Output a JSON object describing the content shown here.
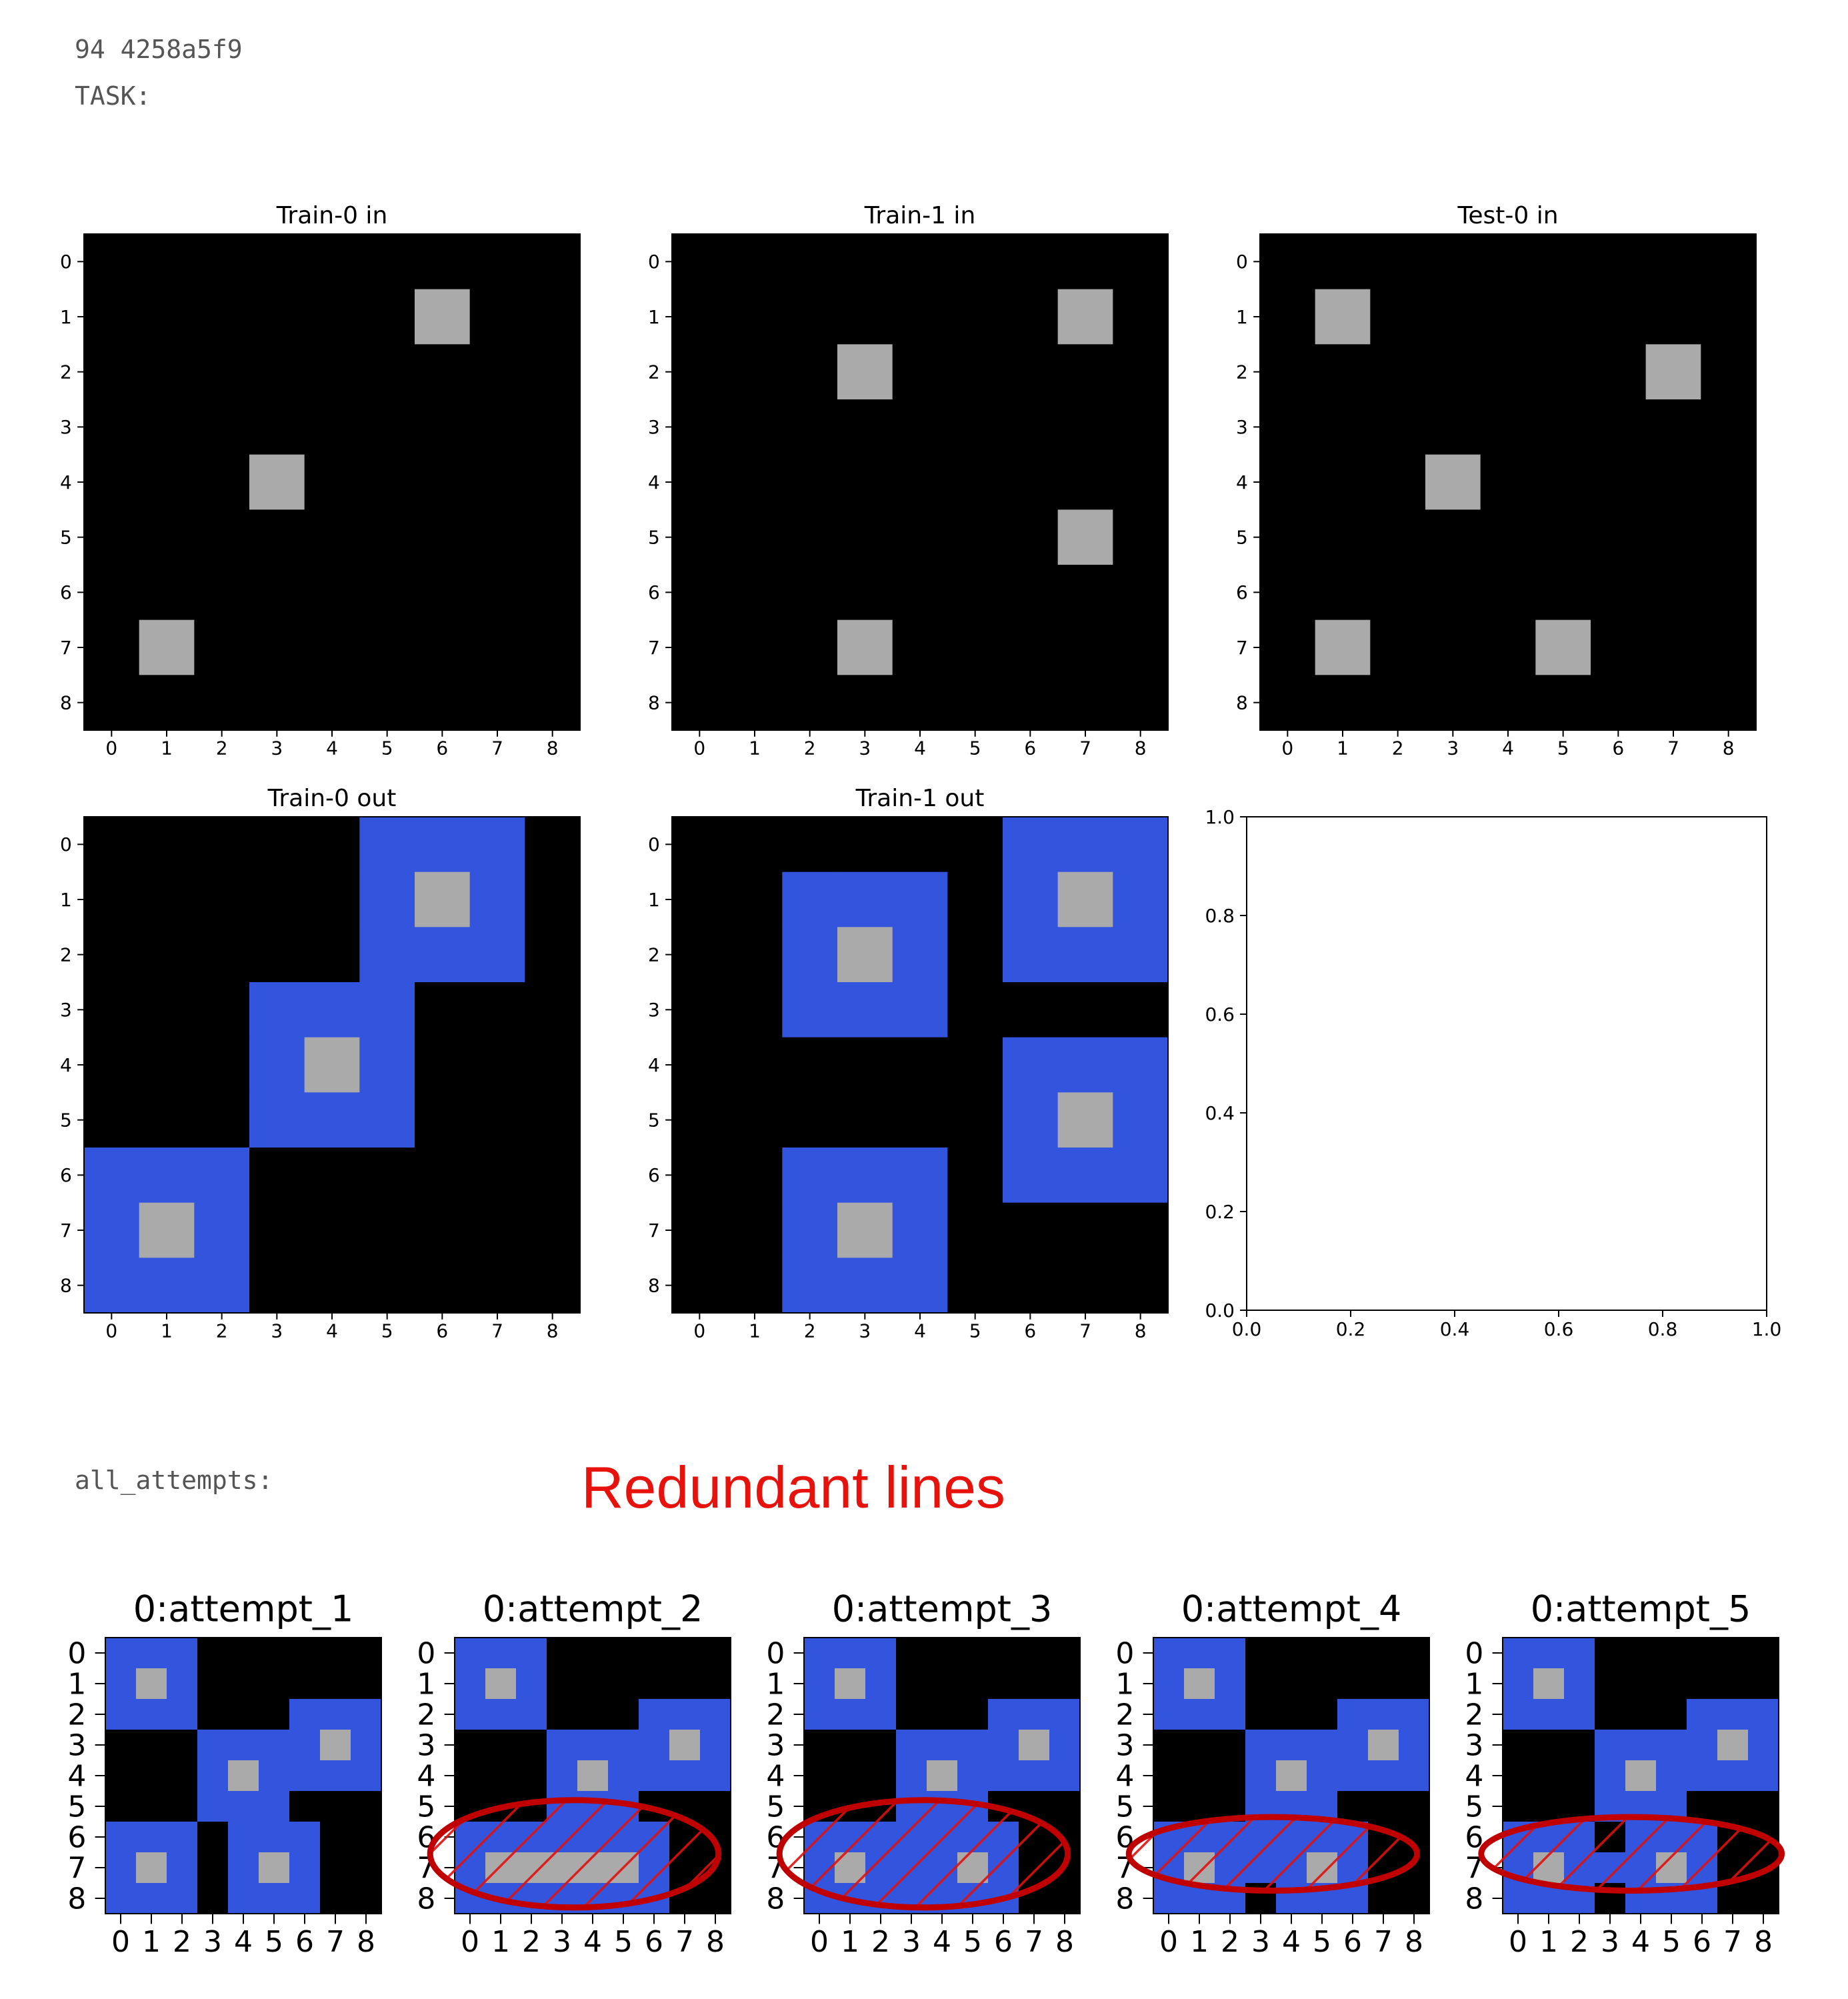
{
  "header": {
    "line1": "94 4258a5f9",
    "line2": "TASK:"
  },
  "attempts_label": "all_attempts:",
  "annotation": "Redundant lines",
  "palette": {
    "0": "#000000",
    "1": "#3355dd",
    "5": "#aaaaaa"
  },
  "highlight_color": "#c00000",
  "chart_data": [
    {
      "type": "heatmap",
      "title": "Train-0 in",
      "xticks": [
        0,
        1,
        2,
        3,
        4,
        5,
        6,
        7,
        8
      ],
      "yticks": [
        0,
        1,
        2,
        3,
        4,
        5,
        6,
        7,
        8
      ],
      "grid": [
        "000000000",
        "000000500",
        "000000000",
        "000000000",
        "000500000",
        "000000000",
        "000000000",
        "050000000",
        "000000000"
      ]
    },
    {
      "type": "heatmap",
      "title": "Train-1 in",
      "xticks": [
        0,
        1,
        2,
        3,
        4,
        5,
        6,
        7,
        8
      ],
      "yticks": [
        0,
        1,
        2,
        3,
        4,
        5,
        6,
        7,
        8
      ],
      "grid": [
        "000000000",
        "000000050",
        "000500000",
        "000000000",
        "000000000",
        "000000050",
        "000000000",
        "000500000",
        "000000000"
      ]
    },
    {
      "type": "heatmap",
      "title": "Test-0 in",
      "xticks": [
        0,
        1,
        2,
        3,
        4,
        5,
        6,
        7,
        8
      ],
      "yticks": [
        0,
        1,
        2,
        3,
        4,
        5,
        6,
        7,
        8
      ],
      "grid": [
        "000000000",
        "050000000",
        "000000050",
        "000000000",
        "000500000",
        "000000000",
        "000000000",
        "050005000",
        "000000000"
      ]
    },
    {
      "type": "heatmap",
      "title": "Train-0 out",
      "xticks": [
        0,
        1,
        2,
        3,
        4,
        5,
        6,
        7,
        8
      ],
      "yticks": [
        0,
        1,
        2,
        3,
        4,
        5,
        6,
        7,
        8
      ],
      "grid": [
        "000001110",
        "000001510",
        "000001110",
        "000111000",
        "000151000",
        "000111000",
        "111000000",
        "151000000",
        "111000000"
      ]
    },
    {
      "type": "heatmap",
      "title": "Train-1 out",
      "xticks": [
        0,
        1,
        2,
        3,
        4,
        5,
        6,
        7,
        8
      ],
      "yticks": [
        0,
        1,
        2,
        3,
        4,
        5,
        6,
        7,
        8
      ],
      "grid": [
        "000000111",
        "001110151",
        "001510111",
        "001110000",
        "000000111",
        "000000151",
        "001110111",
        "001510000",
        "001110000"
      ]
    },
    {
      "type": "line",
      "title": "",
      "series": [],
      "xlim": [
        0,
        1
      ],
      "ylim": [
        0,
        1
      ],
      "xticks": [
        "0.0",
        "0.2",
        "0.4",
        "0.6",
        "0.8",
        "1.0"
      ],
      "yticks": [
        "0.0",
        "0.2",
        "0.4",
        "0.6",
        "0.8",
        "1.0"
      ]
    },
    {
      "type": "heatmap",
      "title": "0:attempt_1",
      "xticks": [
        0,
        1,
        2,
        3,
        4,
        5,
        6,
        7,
        8
      ],
      "yticks": [
        0,
        1,
        2,
        3,
        4,
        5,
        6,
        7,
        8
      ],
      "grid": [
        "111000000",
        "151000000",
        "111000111",
        "000111151",
        "000151111",
        "000111000",
        "111011100",
        "151015100",
        "111011100"
      ]
    },
    {
      "type": "heatmap",
      "title": "0:attempt_2",
      "xticks": [
        0,
        1,
        2,
        3,
        4,
        5,
        6,
        7,
        8
      ],
      "yticks": [
        0,
        1,
        2,
        3,
        4,
        5,
        6,
        7,
        8
      ],
      "grid": [
        "111000000",
        "151000000",
        "111000111",
        "000111151",
        "000151111",
        "000111000",
        "111111100",
        "155555100",
        "111111100"
      ]
    },
    {
      "type": "heatmap",
      "title": "0:attempt_3",
      "xticks": [
        0,
        1,
        2,
        3,
        4,
        5,
        6,
        7,
        8
      ],
      "yticks": [
        0,
        1,
        2,
        3,
        4,
        5,
        6,
        7,
        8
      ],
      "grid": [
        "111000000",
        "151000000",
        "111000111",
        "000111151",
        "000151111",
        "000111000",
        "111111100",
        "151115100",
        "111111100"
      ]
    },
    {
      "type": "heatmap",
      "title": "0:attempt_4",
      "xticks": [
        0,
        1,
        2,
        3,
        4,
        5,
        6,
        7,
        8
      ],
      "yticks": [
        0,
        1,
        2,
        3,
        4,
        5,
        6,
        7,
        8
      ],
      "grid": [
        "111000000",
        "151000000",
        "111000111",
        "000111151",
        "000151111",
        "000111000",
        "111111100",
        "151115100",
        "111011100"
      ]
    },
    {
      "type": "heatmap",
      "title": "0:attempt_5",
      "xticks": [
        0,
        1,
        2,
        3,
        4,
        5,
        6,
        7,
        8
      ],
      "yticks": [
        0,
        1,
        2,
        3,
        4,
        5,
        6,
        7,
        8
      ],
      "grid": [
        "111000000",
        "151000000",
        "111000111",
        "000111151",
        "000151111",
        "000111000",
        "111011100",
        "151115100",
        "111011100"
      ]
    }
  ]
}
